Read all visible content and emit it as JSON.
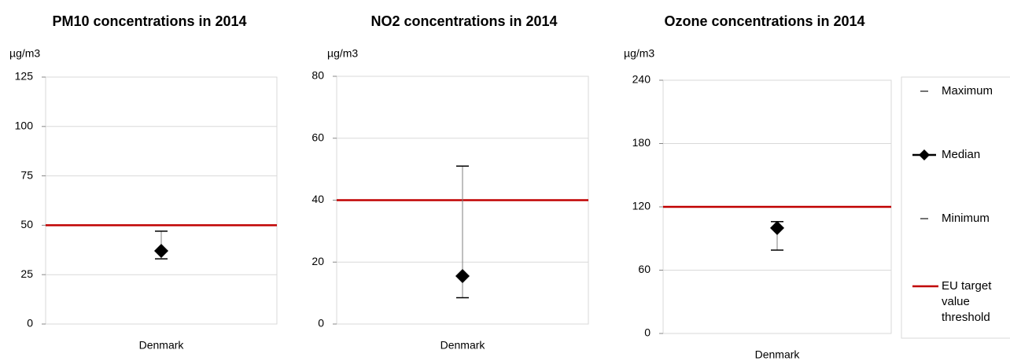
{
  "chart_data": [
    {
      "type": "errorbar",
      "title": "PM10 concentrations in 2014",
      "y_label": "µg/m3",
      "categories": [
        "Denmark"
      ],
      "maximum": [
        47
      ],
      "median": [
        37
      ],
      "minimum": [
        33
      ],
      "threshold": 50,
      "ylim": [
        0,
        125
      ],
      "yticks": [
        0,
        25,
        50,
        75,
        100,
        125
      ],
      "grid": true
    },
    {
      "type": "errorbar",
      "title": "NO2 concentrations in 2014",
      "y_label": "µg/m3",
      "categories": [
        "Denmark"
      ],
      "maximum": [
        51
      ],
      "median": [
        15.5
      ],
      "minimum": [
        8.5
      ],
      "threshold": 40,
      "ylim": [
        0,
        80
      ],
      "yticks": [
        0,
        20,
        40,
        60,
        80
      ],
      "grid": true
    },
    {
      "type": "errorbar",
      "title": "Ozone concentrations in 2014",
      "y_label": "µg/m3",
      "categories": [
        "Denmark"
      ],
      "maximum": [
        106
      ],
      "median": [
        100
      ],
      "minimum": [
        79
      ],
      "threshold": 120,
      "ylim": [
        0,
        240
      ],
      "yticks": [
        0,
        60,
        120,
        180,
        240
      ],
      "grid": true
    }
  ],
  "legend": {
    "maximum": "Maximum",
    "median": "Median",
    "minimum": "Minimum",
    "threshold": "EU target value threshold"
  },
  "colors": {
    "marker": "#000000",
    "threshold": "#c00000",
    "grid": "#d9d9d9",
    "whisker": "#7f7f7f"
  }
}
